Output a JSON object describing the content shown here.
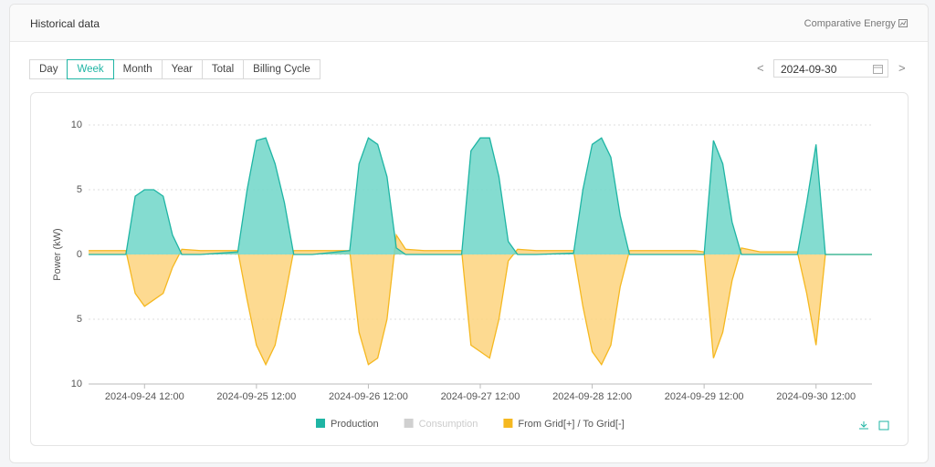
{
  "header": {
    "title": "Historical data",
    "link": "Comparative Energy"
  },
  "tabs": [
    "Day",
    "Week",
    "Month",
    "Year",
    "Total",
    "Billing Cycle"
  ],
  "active_tab": 1,
  "date": "2024-09-30",
  "chart_data": {
    "type": "area",
    "y_label": "Power  (kW)",
    "x": [
      "2024-09-24 00:00",
      "2024-09-24 08:00",
      "2024-09-24 10:00",
      "2024-09-24 12:00",
      "2024-09-24 14:00",
      "2024-09-24 16:00",
      "2024-09-24 18:00",
      "2024-09-24 20:00",
      "2024-09-25 00:00",
      "2024-09-25 08:00",
      "2024-09-25 10:00",
      "2024-09-25 12:00",
      "2024-09-25 14:00",
      "2024-09-25 16:00",
      "2024-09-25 18:00",
      "2024-09-25 20:00",
      "2024-09-26 00:00",
      "2024-09-26 08:00",
      "2024-09-26 10:00",
      "2024-09-26 12:00",
      "2024-09-26 14:00",
      "2024-09-26 16:00",
      "2024-09-26 18:00",
      "2024-09-26 20:00",
      "2024-09-27 00:00",
      "2024-09-27 08:00",
      "2024-09-27 10:00",
      "2024-09-27 12:00",
      "2024-09-27 14:00",
      "2024-09-27 16:00",
      "2024-09-27 18:00",
      "2024-09-27 20:00",
      "2024-09-28 00:00",
      "2024-09-28 08:00",
      "2024-09-28 10:00",
      "2024-09-28 12:00",
      "2024-09-28 14:00",
      "2024-09-28 16:00",
      "2024-09-28 18:00",
      "2024-09-28 20:00",
      "2024-09-29 00:00",
      "2024-09-29 08:00",
      "2024-09-29 10:00",
      "2024-09-29 12:00",
      "2024-09-29 14:00",
      "2024-09-29 16:00",
      "2024-09-29 18:00",
      "2024-09-29 20:00",
      "2024-09-30 00:00",
      "2024-09-30 08:00",
      "2024-09-30 10:00",
      "2024-09-30 12:00",
      "2024-09-30 14:00",
      "2024-09-30 16:00",
      "2024-09-30 18:00",
      "2024-09-30 20:00",
      "2024-10-01 00:00"
    ],
    "series": [
      {
        "name": "Production",
        "color": "#1fb5a4",
        "fill": "#6fd6c8",
        "values": [
          0,
          0,
          4.5,
          5,
          5,
          4.5,
          1.5,
          0,
          0,
          0.2,
          5,
          8.8,
          9,
          7,
          4,
          0,
          0,
          0.3,
          7,
          9,
          8.5,
          6,
          0.5,
          0,
          0,
          0,
          8,
          9,
          9,
          6,
          1,
          0,
          0,
          0.1,
          5,
          8.5,
          9,
          7.5,
          3,
          0,
          0,
          0,
          0,
          0,
          8.8,
          7,
          2.5,
          0,
          0,
          0,
          4,
          8.5,
          0,
          0,
          0,
          0,
          0
        ]
      },
      {
        "name": "Consumption",
        "color": "#d0d0d0",
        "visible": false
      },
      {
        "name": "From Grid[+] / To Grid[-]",
        "color": "#f5b820",
        "fill": "#fdd47e",
        "values": [
          0.3,
          0.3,
          -3,
          -4,
          -3.5,
          -3,
          -1,
          0.4,
          0.3,
          0.3,
          -3.5,
          -7,
          -8.5,
          -7,
          -3.5,
          0.3,
          0.3,
          0.3,
          -6,
          -8.5,
          -8,
          -5,
          1.5,
          0.4,
          0.3,
          0.3,
          -7,
          -7.5,
          -8,
          -5,
          -0.5,
          0.4,
          0.3,
          0.3,
          -4,
          -7.5,
          -8.5,
          -7,
          -2.5,
          0.3,
          0.3,
          0.3,
          0.3,
          0.2,
          -8,
          -6,
          -2,
          0.5,
          0.2,
          0.2,
          -3,
          -7,
          0,
          0,
          0,
          0,
          0
        ]
      }
    ],
    "xlim": [
      "2024-09-24 00:00",
      "2024-10-01 00:00"
    ],
    "xticks": [
      "2024-09-24 12:00",
      "2024-09-25 12:00",
      "2024-09-26 12:00",
      "2024-09-27 12:00",
      "2024-09-28 12:00",
      "2024-09-29 12:00",
      "2024-09-30 12:00"
    ],
    "ylim": [
      -10,
      10
    ],
    "yticks": [
      10,
      5,
      0,
      {
        "value": -5,
        "label": "5"
      },
      {
        "value": -10,
        "label": "10"
      }
    ],
    "grid": true
  }
}
